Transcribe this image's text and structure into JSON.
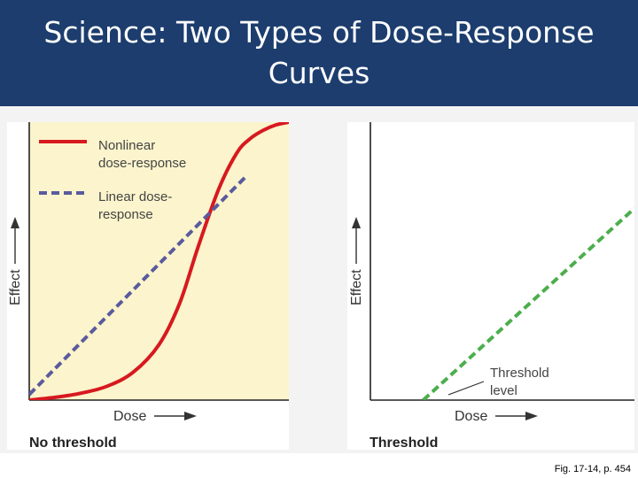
{
  "title": "Science: Two Types of Dose-Response Curves",
  "title_line1": "Science: Two Types of Dose-Response",
  "title_line2": "Curves",
  "caption": "Fig. 17-14, p. 454",
  "colors": {
    "title_bg": "#1c3d6e",
    "nonlinear": "#d7191f",
    "linear": "#5a5a9e",
    "threshold_line": "#4cae4c",
    "panel_left_bg": "#fbf4cc"
  },
  "chart_data": [
    {
      "type": "line",
      "title": "No threshold",
      "xlabel": "Dose",
      "ylabel": "Effect",
      "xlim": [
        0,
        10
      ],
      "ylim": [
        0,
        10
      ],
      "legend": [
        {
          "line1": "Nonlinear",
          "line2": "dose-response",
          "style": "solid"
        },
        {
          "line1": "Linear dose-",
          "line2": "response",
          "style": "dashed"
        }
      ],
      "series": [
        {
          "name": "Nonlinear dose-response",
          "x": [
            0,
            1,
            2,
            3,
            4,
            5,
            5.8,
            6.5,
            7.3,
            8,
            8.5,
            9,
            9.5,
            10
          ],
          "y": [
            0,
            0.1,
            0.25,
            0.5,
            1.0,
            2.0,
            3.5,
            5.5,
            7.6,
            8.9,
            9.4,
            9.7,
            9.9,
            10
          ]
        },
        {
          "name": "Linear dose-response",
          "x": [
            0,
            8.3
          ],
          "y": [
            0.2,
            8.0
          ]
        }
      ]
    },
    {
      "type": "line",
      "title": "Threshold",
      "xlabel": "Dose",
      "ylabel": "Effect",
      "xlim": [
        0,
        10
      ],
      "ylim": [
        0,
        10
      ],
      "annotation": {
        "line1": "Threshold",
        "line2": "level"
      },
      "series": [
        {
          "name": "Threshold",
          "x": [
            2,
            10
          ],
          "y": [
            0,
            6.9
          ]
        }
      ]
    }
  ]
}
